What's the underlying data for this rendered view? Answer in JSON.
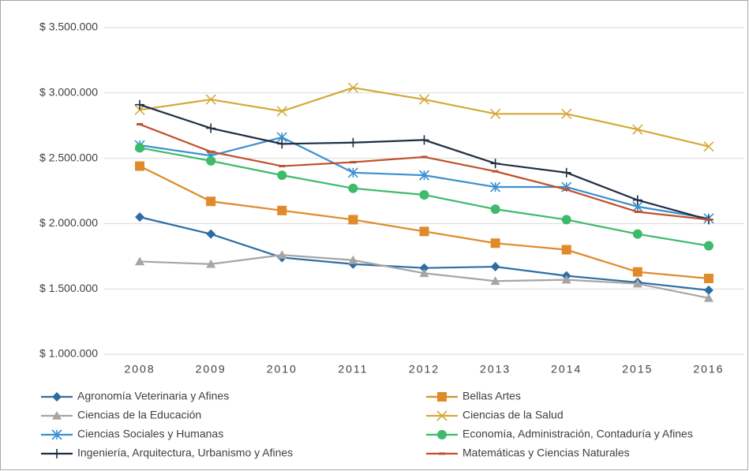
{
  "chart_data": {
    "type": "line",
    "categories": [
      "2008",
      "2009",
      "2010",
      "2011",
      "2012",
      "2013",
      "2014",
      "2015",
      "2016"
    ],
    "series": [
      {
        "name": "Agronomía Veterinaria y Afines",
        "color": "#2e6da4",
        "marker": "diamond",
        "values": [
          2050000,
          1920000,
          1740000,
          1690000,
          1660000,
          1670000,
          1600000,
          1550000,
          1490000
        ]
      },
      {
        "name": "Bellas Artes",
        "color": "#e08a2a",
        "marker": "square",
        "values": [
          2440000,
          2170000,
          2100000,
          2030000,
          1940000,
          1850000,
          1800000,
          1630000,
          1580000
        ]
      },
      {
        "name": "Ciencias de la Educación",
        "color": "#a5a5a5",
        "marker": "triangle",
        "values": [
          1710000,
          1690000,
          1760000,
          1720000,
          1620000,
          1560000,
          1570000,
          1540000,
          1430000
        ]
      },
      {
        "name": "Ciencias de la Salud",
        "color": "#d4a93a",
        "marker": "x",
        "values": [
          2870000,
          2950000,
          2860000,
          3040000,
          2950000,
          2840000,
          2840000,
          2720000,
          2590000
        ]
      },
      {
        "name": "Ciencias Sociales y Humanas",
        "color": "#3b8fd0",
        "marker": "star",
        "values": [
          2600000,
          2520000,
          2660000,
          2390000,
          2370000,
          2280000,
          2280000,
          2130000,
          2040000
        ]
      },
      {
        "name": "Economía, Administración, Contaduría y Afines",
        "color": "#3dba6a",
        "marker": "circle",
        "values": [
          2580000,
          2480000,
          2370000,
          2270000,
          2220000,
          2110000,
          2030000,
          1920000,
          1830000
        ]
      },
      {
        "name": "Ingeniería, Arquitectura, Urbanismo y Afines",
        "color": "#1f2d44",
        "marker": "plus",
        "values": [
          2910000,
          2730000,
          2610000,
          2620000,
          2640000,
          2460000,
          2390000,
          2180000,
          2030000
        ]
      },
      {
        "name": "Matemáticas y Ciencias Naturales",
        "color": "#c0502a",
        "marker": "dash",
        "values": [
          2760000,
          2550000,
          2440000,
          2470000,
          2510000,
          2400000,
          2260000,
          2090000,
          2030000
        ]
      }
    ],
    "ylim": [
      1000000,
      3500000
    ],
    "yticks": [
      {
        "value": 1000000,
        "label": "$ 1.000.000"
      },
      {
        "value": 1500000,
        "label": "$ 1.500.000"
      },
      {
        "value": 2000000,
        "label": "$ 2.000.000"
      },
      {
        "value": 2500000,
        "label": "$ 2.500.000"
      },
      {
        "value": 3000000,
        "label": "$ 3.000.000"
      },
      {
        "value": 3500000,
        "label": "$ 3.500.000"
      }
    ],
    "grid": true,
    "legend": "bottom"
  }
}
